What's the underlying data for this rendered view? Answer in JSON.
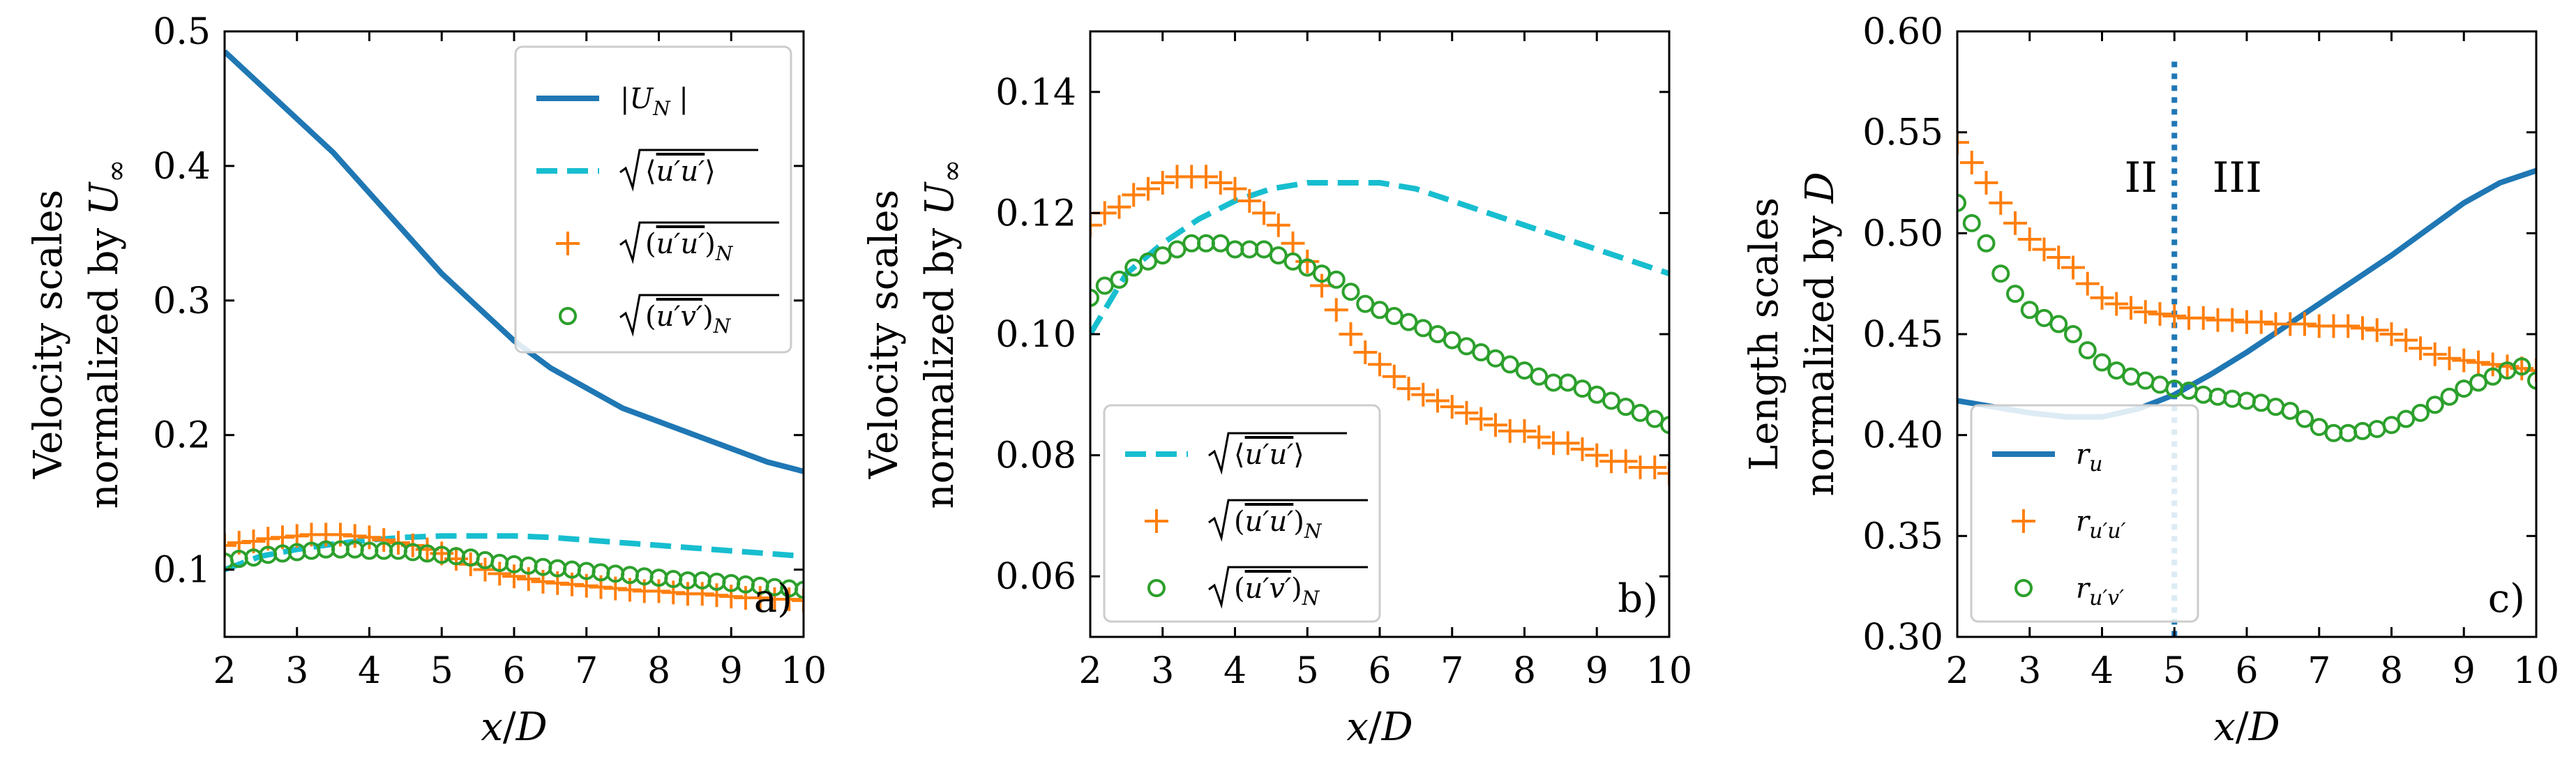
{
  "colors": {
    "blue": "#1f77b4",
    "cyan": "#17becf",
    "orange": "#ff7f0e",
    "green": "#2ca02c",
    "axis": "#000000"
  },
  "chart_data": [
    {
      "type": "line",
      "panel": "a)",
      "xlabel": "x/D",
      "ylabel_line1": "Velocity scales",
      "ylabel_line2": "normalized by U∞",
      "xlim": [
        2,
        10
      ],
      "ylim": [
        0.05,
        0.5
      ],
      "xticks": [
        2,
        3,
        4,
        5,
        6,
        7,
        8,
        9,
        10
      ],
      "yticks": [
        0.1,
        0.2,
        0.3,
        0.4,
        0.5
      ],
      "ytick_labels": [
        "0.1",
        "0.2",
        "0.3",
        "0.4",
        "0.5"
      ],
      "legend_position": "top-right",
      "series": [
        {
          "key": "UN",
          "name": "|U_N|",
          "style": "solid",
          "color": "#1f77b4",
          "x": [
            2,
            2.5,
            3,
            3.5,
            4,
            4.5,
            5,
            5.5,
            6,
            6.5,
            7,
            7.5,
            8,
            8.5,
            9,
            9.5,
            10
          ],
          "y": [
            0.485,
            0.46,
            0.435,
            0.41,
            0.38,
            0.35,
            0.32,
            0.295,
            0.27,
            0.25,
            0.235,
            0.22,
            0.21,
            0.2,
            0.19,
            0.18,
            0.173
          ]
        },
        {
          "key": "uu_avg",
          "name": "sqrt(<u'u'>)",
          "style": "dashed",
          "color": "#17becf",
          "x": [
            2,
            2.5,
            3,
            3.5,
            4,
            4.5,
            5,
            5.5,
            6,
            6.5,
            7,
            7.5,
            8,
            8.5,
            9,
            9.5,
            10
          ],
          "y": [
            0.1,
            0.11,
            0.115,
            0.119,
            0.122,
            0.124,
            0.125,
            0.125,
            0.125,
            0.124,
            0.122,
            0.12,
            0.118,
            0.116,
            0.114,
            0.112,
            0.11
          ]
        },
        {
          "key": "uu_N",
          "name": "sqrt((u'u')_N)",
          "style": "plus",
          "color": "#ff7f0e",
          "x": [
            2,
            2.2,
            2.4,
            2.6,
            2.8,
            3,
            3.2,
            3.4,
            3.6,
            3.8,
            4,
            4.2,
            4.4,
            4.6,
            4.8,
            5,
            5.2,
            5.4,
            5.6,
            5.8,
            6,
            6.2,
            6.4,
            6.6,
            6.8,
            7,
            7.2,
            7.4,
            7.6,
            7.8,
            8,
            8.2,
            8.4,
            8.6,
            8.8,
            9,
            9.2,
            9.4,
            9.6,
            9.8,
            10
          ],
          "y": [
            0.118,
            0.12,
            0.121,
            0.123,
            0.124,
            0.125,
            0.126,
            0.126,
            0.126,
            0.125,
            0.124,
            0.122,
            0.12,
            0.118,
            0.115,
            0.112,
            0.108,
            0.104,
            0.1,
            0.097,
            0.095,
            0.093,
            0.091,
            0.09,
            0.089,
            0.088,
            0.087,
            0.086,
            0.085,
            0.084,
            0.084,
            0.083,
            0.082,
            0.082,
            0.081,
            0.08,
            0.079,
            0.079,
            0.078,
            0.078,
            0.077
          ]
        },
        {
          "key": "uv_N",
          "name": "sqrt((u'v')_N)",
          "style": "circle",
          "color": "#2ca02c",
          "x": [
            2,
            2.2,
            2.4,
            2.6,
            2.8,
            3,
            3.2,
            3.4,
            3.6,
            3.8,
            4,
            4.2,
            4.4,
            4.6,
            4.8,
            5,
            5.2,
            5.4,
            5.6,
            5.8,
            6,
            6.2,
            6.4,
            6.6,
            6.8,
            7,
            7.2,
            7.4,
            7.6,
            7.8,
            8,
            8.2,
            8.4,
            8.6,
            8.8,
            9,
            9.2,
            9.4,
            9.6,
            9.8,
            10
          ],
          "y": [
            0.106,
            0.108,
            0.109,
            0.111,
            0.112,
            0.113,
            0.114,
            0.115,
            0.115,
            0.115,
            0.114,
            0.114,
            0.114,
            0.113,
            0.112,
            0.111,
            0.11,
            0.109,
            0.107,
            0.105,
            0.104,
            0.103,
            0.102,
            0.101,
            0.1,
            0.099,
            0.098,
            0.097,
            0.096,
            0.095,
            0.094,
            0.093,
            0.092,
            0.092,
            0.091,
            0.09,
            0.089,
            0.088,
            0.087,
            0.086,
            0.085
          ]
        }
      ]
    },
    {
      "type": "line",
      "panel": "b)",
      "xlabel": "x/D",
      "ylabel_line1": "Velocity scales",
      "ylabel_line2": "normalized by U∞",
      "xlim": [
        2,
        10
      ],
      "ylim": [
        0.05,
        0.15
      ],
      "xticks": [
        2,
        3,
        4,
        5,
        6,
        7,
        8,
        9,
        10
      ],
      "yticks": [
        0.06,
        0.08,
        0.1,
        0.12,
        0.14
      ],
      "ytick_labels": [
        "0.06",
        "0.08",
        "0.10",
        "0.12",
        "0.14"
      ],
      "legend_position": "bottom-left",
      "series": [
        {
          "key": "uu_avg",
          "name": "sqrt(<u'u'>)",
          "style": "dashed",
          "color": "#17becf",
          "x": [
            2,
            2.5,
            3,
            3.5,
            4,
            4.5,
            5,
            5.5,
            6,
            6.5,
            7,
            7.5,
            8,
            8.5,
            9,
            9.5,
            10
          ],
          "y": [
            0.1,
            0.11,
            0.115,
            0.119,
            0.122,
            0.124,
            0.125,
            0.125,
            0.125,
            0.124,
            0.122,
            0.12,
            0.118,
            0.116,
            0.114,
            0.112,
            0.11
          ]
        },
        {
          "key": "uu_N",
          "name": "sqrt((u'u')_N)",
          "style": "plus",
          "color": "#ff7f0e",
          "x": [
            2,
            2.2,
            2.4,
            2.6,
            2.8,
            3,
            3.2,
            3.4,
            3.6,
            3.8,
            4,
            4.2,
            4.4,
            4.6,
            4.8,
            5,
            5.2,
            5.4,
            5.6,
            5.8,
            6,
            6.2,
            6.4,
            6.6,
            6.8,
            7,
            7.2,
            7.4,
            7.6,
            7.8,
            8,
            8.2,
            8.4,
            8.6,
            8.8,
            9,
            9.2,
            9.4,
            9.6,
            9.8,
            10
          ],
          "y": [
            0.118,
            0.12,
            0.121,
            0.123,
            0.124,
            0.125,
            0.126,
            0.126,
            0.126,
            0.125,
            0.124,
            0.122,
            0.12,
            0.118,
            0.115,
            0.112,
            0.108,
            0.104,
            0.1,
            0.097,
            0.095,
            0.093,
            0.091,
            0.09,
            0.089,
            0.088,
            0.087,
            0.086,
            0.085,
            0.084,
            0.084,
            0.083,
            0.082,
            0.082,
            0.081,
            0.08,
            0.079,
            0.079,
            0.078,
            0.078,
            0.077
          ]
        },
        {
          "key": "uv_N",
          "name": "sqrt((u'v')_N)",
          "style": "circle",
          "color": "#2ca02c",
          "x": [
            2,
            2.2,
            2.4,
            2.6,
            2.8,
            3,
            3.2,
            3.4,
            3.6,
            3.8,
            4,
            4.2,
            4.4,
            4.6,
            4.8,
            5,
            5.2,
            5.4,
            5.6,
            5.8,
            6,
            6.2,
            6.4,
            6.6,
            6.8,
            7,
            7.2,
            7.4,
            7.6,
            7.8,
            8,
            8.2,
            8.4,
            8.6,
            8.8,
            9,
            9.2,
            9.4,
            9.6,
            9.8,
            10
          ],
          "y": [
            0.106,
            0.108,
            0.109,
            0.111,
            0.112,
            0.113,
            0.114,
            0.115,
            0.115,
            0.115,
            0.114,
            0.114,
            0.114,
            0.113,
            0.112,
            0.111,
            0.11,
            0.109,
            0.107,
            0.105,
            0.104,
            0.103,
            0.102,
            0.101,
            0.1,
            0.099,
            0.098,
            0.097,
            0.096,
            0.095,
            0.094,
            0.093,
            0.092,
            0.092,
            0.091,
            0.09,
            0.089,
            0.088,
            0.087,
            0.086,
            0.085
          ]
        }
      ]
    },
    {
      "type": "line",
      "panel": "c)",
      "xlabel": "x/D",
      "ylabel_line1": "Length scales",
      "ylabel_line2": "normalized by D",
      "xlim": [
        2,
        10
      ],
      "ylim": [
        0.3,
        0.6
      ],
      "xticks": [
        2,
        3,
        4,
        5,
        6,
        7,
        8,
        9,
        10
      ],
      "yticks": [
        0.3,
        0.35,
        0.4,
        0.45,
        0.5,
        0.55,
        0.6
      ],
      "ytick_labels": [
        "0.30",
        "0.35",
        "0.40",
        "0.45",
        "0.50",
        "0.55",
        "0.60"
      ],
      "legend_position": "bottom-left",
      "vline": {
        "x": 5,
        "left_label": "II",
        "right_label": "III",
        "color": "#1f77b4"
      },
      "series": [
        {
          "key": "ru",
          "name": "r_u",
          "style": "solid",
          "color": "#1f77b4",
          "x": [
            2,
            2.5,
            3,
            3.5,
            4,
            4.5,
            5,
            5.5,
            6,
            6.5,
            7,
            7.5,
            8,
            8.5,
            9,
            9.5,
            10
          ],
          "y": [
            0.417,
            0.414,
            0.411,
            0.409,
            0.409,
            0.413,
            0.42,
            0.43,
            0.441,
            0.453,
            0.465,
            0.477,
            0.489,
            0.502,
            0.515,
            0.525,
            0.531
          ]
        },
        {
          "key": "ruu",
          "name": "r_u'u'",
          "style": "plus",
          "color": "#ff7f0e",
          "x": [
            2,
            2.2,
            2.4,
            2.6,
            2.8,
            3,
            3.2,
            3.4,
            3.6,
            3.8,
            4,
            4.2,
            4.4,
            4.6,
            4.8,
            5,
            5.2,
            5.4,
            5.6,
            5.8,
            6,
            6.2,
            6.4,
            6.6,
            6.8,
            7,
            7.2,
            7.4,
            7.6,
            7.8,
            8,
            8.2,
            8.4,
            8.6,
            8.8,
            9,
            9.2,
            9.4,
            9.6,
            9.8,
            10
          ],
          "y": [
            0.545,
            0.535,
            0.525,
            0.515,
            0.505,
            0.497,
            0.492,
            0.488,
            0.483,
            0.475,
            0.468,
            0.465,
            0.463,
            0.461,
            0.46,
            0.459,
            0.458,
            0.458,
            0.457,
            0.457,
            0.456,
            0.456,
            0.455,
            0.455,
            0.455,
            0.454,
            0.454,
            0.454,
            0.453,
            0.452,
            0.45,
            0.447,
            0.443,
            0.44,
            0.438,
            0.437,
            0.436,
            0.435,
            0.434,
            0.433,
            0.432
          ]
        },
        {
          "key": "ruv",
          "name": "r_u'v'",
          "style": "circle",
          "color": "#2ca02c",
          "x": [
            2,
            2.2,
            2.4,
            2.6,
            2.8,
            3,
            3.2,
            3.4,
            3.6,
            3.8,
            4,
            4.2,
            4.4,
            4.6,
            4.8,
            5,
            5.2,
            5.4,
            5.6,
            5.8,
            6,
            6.2,
            6.4,
            6.6,
            6.8,
            7,
            7.2,
            7.4,
            7.6,
            7.8,
            8,
            8.2,
            8.4,
            8.6,
            8.8,
            9,
            9.2,
            9.4,
            9.6,
            9.8,
            10
          ],
          "y": [
            0.515,
            0.505,
            0.495,
            0.48,
            0.47,
            0.462,
            0.458,
            0.455,
            0.45,
            0.442,
            0.436,
            0.432,
            0.429,
            0.427,
            0.425,
            0.423,
            0.422,
            0.42,
            0.419,
            0.418,
            0.417,
            0.416,
            0.414,
            0.412,
            0.408,
            0.404,
            0.401,
            0.401,
            0.402,
            0.403,
            0.405,
            0.408,
            0.411,
            0.415,
            0.419,
            0.423,
            0.426,
            0.429,
            0.432,
            0.434,
            0.427
          ]
        }
      ]
    }
  ]
}
